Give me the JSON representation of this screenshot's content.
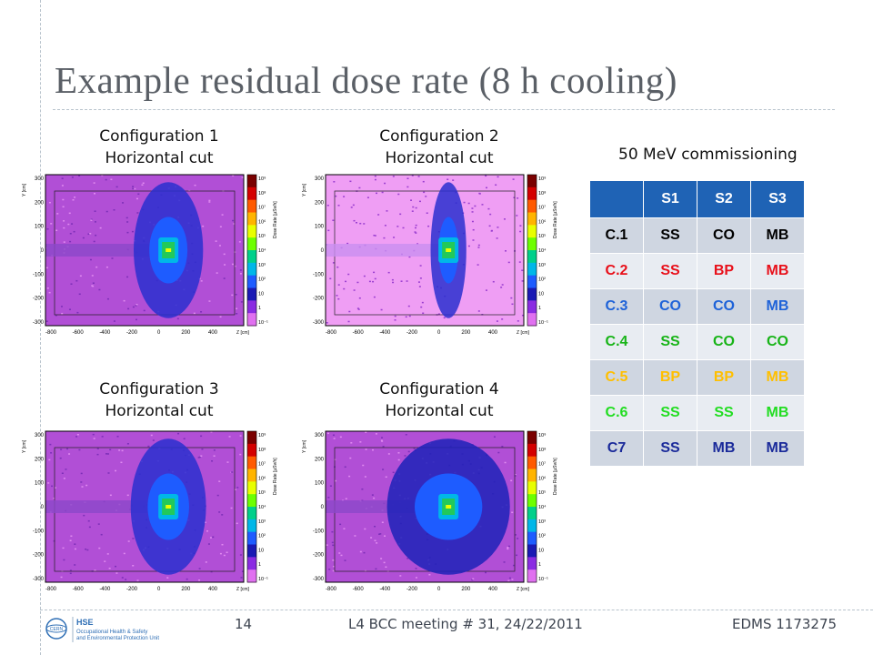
{
  "title": "Example residual dose rate (8 h cooling)",
  "plots": [
    {
      "caption1": "Configuration 1",
      "caption2": "Horizontal cut",
      "bg": "#b14fd6",
      "inner": "#2a2fcf",
      "wide": 0.35,
      "light": false
    },
    {
      "caption1": "Configuration 2",
      "caption2": "Horizontal cut",
      "bg": "#ef9ef4",
      "inner": "#2a2fcf",
      "wide": 0.18,
      "light": true
    },
    {
      "caption1": "Configuration 3",
      "caption2": "Horizontal cut",
      "bg": "#b14fd6",
      "inner": "#2a2fcf",
      "wide": 0.38,
      "light": false
    },
    {
      "caption1": "Configuration 4",
      "caption2": "Horizontal cut",
      "bg": "#b14fd6",
      "inner": "#1d22b8",
      "wide": 0.62,
      "light": false
    }
  ],
  "axis": {
    "y_label": "Y [cm]",
    "x_label": "Z [cm]",
    "y_ticks": [
      "300",
      "200",
      "100",
      "0",
      "-100",
      "-200",
      "-300"
    ],
    "x_ticks": [
      "-800",
      "-600",
      "-400",
      "-200",
      "0",
      "200",
      "400"
    ],
    "colorbar_label": "Dose Rate [µSv/h]",
    "colorbar_ticks": [
      "10⁹",
      "10⁸",
      "10⁷",
      "10⁶",
      "10⁵",
      "10⁴",
      "10³",
      "10²",
      "10",
      "1",
      "10⁻¹"
    ],
    "colorbar_colors": [
      "#7a0000",
      "#d40000",
      "#ff5a00",
      "#ffb400",
      "#e8ff00",
      "#6dff00",
      "#00d08a",
      "#00b7e8",
      "#1e5cff",
      "#1a1ab4",
      "#8a2be2",
      "#e070f0"
    ]
  },
  "table": {
    "heading": "50 MeV commissioning",
    "columns": [
      "",
      "S1",
      "S2",
      "S3"
    ],
    "rows": [
      {
        "cells": [
          "C.1",
          "SS",
          "CO",
          "MB"
        ],
        "color": "#000000"
      },
      {
        "cells": [
          "C.2",
          "SS",
          "BP",
          "MB"
        ],
        "color": "#e8101a"
      },
      {
        "cells": [
          "C.3",
          "CO",
          "CO",
          "MB"
        ],
        "color": "#1f63d8"
      },
      {
        "cells": [
          "C.4",
          "SS",
          "CO",
          "CO"
        ],
        "color": "#18b418"
      },
      {
        "cells": [
          "C.5",
          "BP",
          "BP",
          "MB"
        ],
        "color": "#ffbf00"
      },
      {
        "cells": [
          "C.6",
          "SS",
          "SS",
          "MB"
        ],
        "color": "#22dd22"
      },
      {
        "cells": [
          "C7",
          "SS",
          "MB",
          "MB"
        ],
        "color": "#1a2a9a"
      }
    ]
  },
  "footer": {
    "page": "14",
    "meeting": "L4 BCC meeting # 31, 24/22/2011",
    "edms": "EDMS 1173275",
    "logo_text1": "HSE",
    "logo_text2": "Occupational Health & Safety",
    "logo_text3": "and Environmental Protection Unit",
    "logo_cern": "CERN"
  }
}
